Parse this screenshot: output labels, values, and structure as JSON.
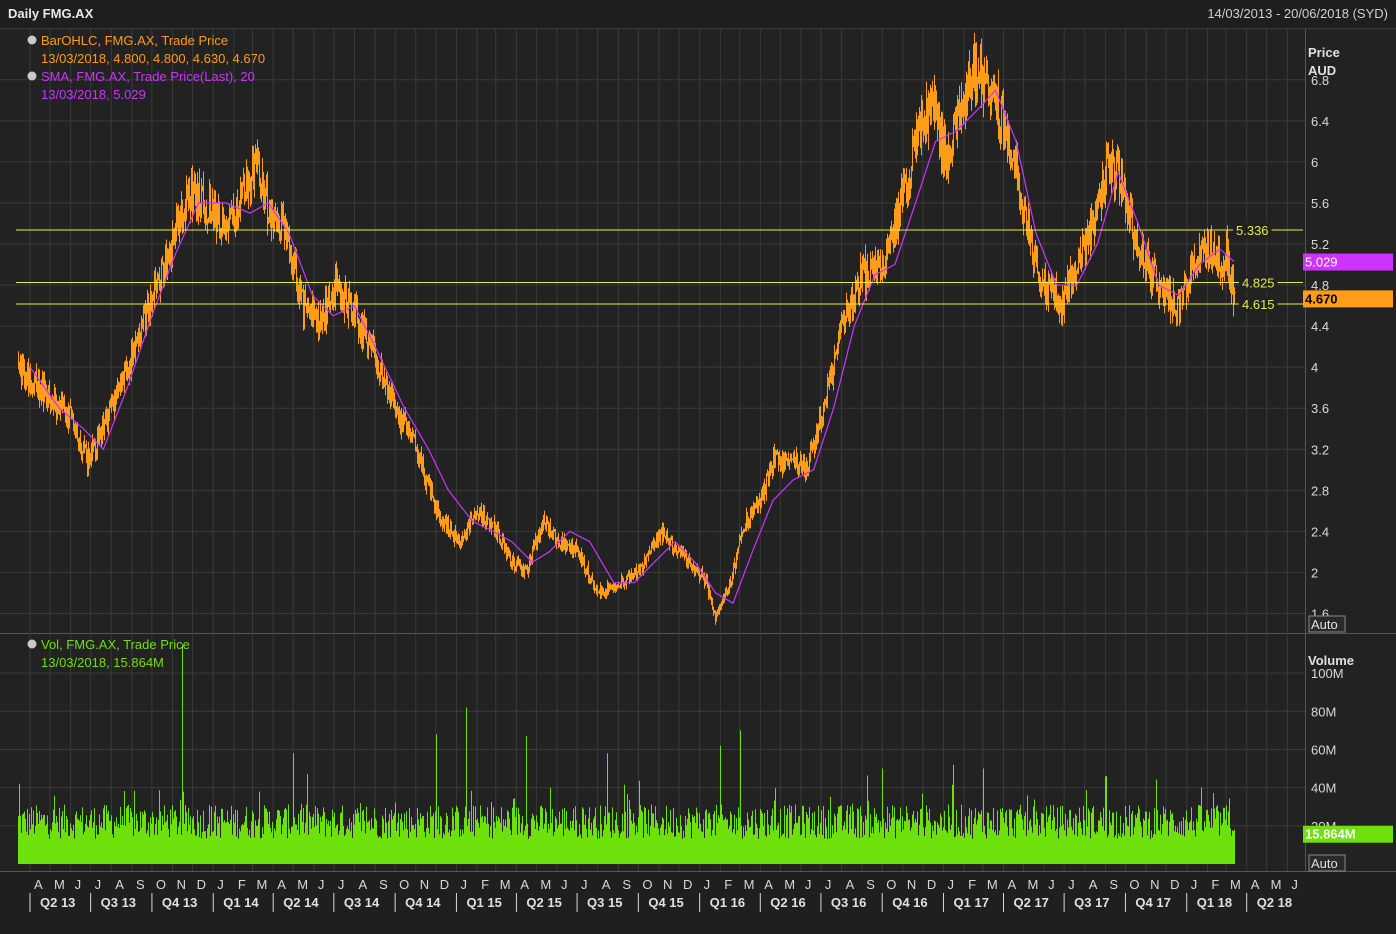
{
  "window": {
    "title": "Daily FMG.AX",
    "date_range": "14/03/2013 - 20/06/2018 (SYD)"
  },
  "legend": {
    "ohlc_line1": "BarOHLC, FMG.AX, Trade Price",
    "ohlc_line2": "13/03/2018, 4.800, 4.800, 4.630, 4.670",
    "sma_line1": "SMA, FMG.AX, Trade Price(Last),  20",
    "sma_line2": "13/03/2018, 5.029",
    "vol_line1": "Vol, FMG.AX, Trade Price",
    "vol_line2": "13/03/2018, 15.864M"
  },
  "price_axis": {
    "title": "Price",
    "unit": "AUD",
    "auto_label": "Auto"
  },
  "volume_axis": {
    "title": "Volume",
    "auto_label": "Auto"
  },
  "colors": {
    "background": "#222222",
    "price": "#ff9c1a",
    "sma": "#cc33ff",
    "volume": "#6ee00b",
    "hline": "#e8e84a",
    "grid": "#3a3a3a"
  },
  "chart_data": [
    {
      "type": "line",
      "title": "Daily FMG.AX",
      "ylabel": "Price AUD",
      "ylim": [
        1.4,
        7.1
      ],
      "y_ticks": [
        1.6,
        2,
        2.4,
        2.8,
        3.2,
        3.6,
        4,
        4.4,
        4.8,
        5.2,
        5.6,
        6,
        6.4,
        6.8
      ],
      "y_tick_labels": [
        "1.6",
        "2",
        "2.4",
        "2.8",
        "3.2",
        "3.6",
        "4",
        "4.4",
        "4.8",
        "5.2",
        "5.6",
        "6",
        "6.4",
        "6.8"
      ],
      "grid": true,
      "x_dates": [
        "2013-03-14",
        "2013-05-01",
        "2013-06-01",
        "2013-06-25",
        "2013-08-01",
        "2013-09-15",
        "2013-10-20",
        "2013-11-25",
        "2013-12-20",
        "2014-01-20",
        "2014-02-15",
        "2014-03-05",
        "2014-03-31",
        "2014-04-20",
        "2014-05-15",
        "2014-06-10",
        "2014-07-01",
        "2014-07-25",
        "2014-08-25",
        "2014-10-01",
        "2014-11-01",
        "2014-12-01",
        "2015-01-05",
        "2015-02-01",
        "2015-03-01",
        "2015-03-25",
        "2015-04-15",
        "2015-05-10",
        "2015-06-01",
        "2015-07-01",
        "2015-08-01",
        "2015-09-01",
        "2015-10-01",
        "2015-11-01",
        "2015-12-01",
        "2016-01-10",
        "2016-01-25",
        "2016-02-15",
        "2016-03-10",
        "2016-04-01",
        "2016-04-20",
        "2016-05-15",
        "2016-06-10",
        "2016-07-05",
        "2016-08-01",
        "2016-09-01",
        "2016-10-01",
        "2016-10-25",
        "2016-11-20",
        "2016-12-15",
        "2017-01-05",
        "2017-01-25",
        "2017-02-15",
        "2017-03-01",
        "2017-03-25",
        "2017-04-15",
        "2017-05-10",
        "2017-06-01",
        "2017-06-25",
        "2017-07-20",
        "2017-08-15",
        "2017-09-05",
        "2017-09-20",
        "2017-10-15",
        "2017-11-10",
        "2017-12-05",
        "2017-12-20",
        "2018-01-15",
        "2018-02-01",
        "2018-02-20",
        "2018-03-01",
        "2018-03-13"
      ],
      "close": [
        4.0,
        3.7,
        3.5,
        3.1,
        3.6,
        4.4,
        5.0,
        5.7,
        5.6,
        5.3,
        5.7,
        6.0,
        5.4,
        5.3,
        4.6,
        4.4,
        4.8,
        4.6,
        4.2,
        3.6,
        3.2,
        2.6,
        2.3,
        2.6,
        2.4,
        2.1,
        2.0,
        2.5,
        2.3,
        2.2,
        1.8,
        1.9,
        2.0,
        2.4,
        2.2,
        1.9,
        1.55,
        1.9,
        2.5,
        2.7,
        3.1,
        3.1,
        3.0,
        3.6,
        4.4,
        4.9,
        5.0,
        5.5,
        6.2,
        6.6,
        6.0,
        6.5,
        6.9,
        6.8,
        6.5,
        6.0,
        5.3,
        4.8,
        4.6,
        5.0,
        5.4,
        6.0,
        5.9,
        5.2,
        4.9,
        4.7,
        4.6,
        5.0,
        5.2,
        5.0,
        5.1,
        4.67
      ],
      "sma_x_dates": [
        "2013-04-01",
        "2013-05-15",
        "2013-06-20",
        "2013-07-20",
        "2013-08-25",
        "2013-10-01",
        "2013-11-05",
        "2013-12-10",
        "2014-01-20",
        "2014-02-25",
        "2014-03-25",
        "2014-04-25",
        "2014-05-30",
        "2014-06-30",
        "2014-08-01",
        "2014-09-01",
        "2014-10-15",
        "2014-11-20",
        "2014-12-20",
        "2015-01-25",
        "2015-02-25",
        "2015-03-25",
        "2015-04-25",
        "2015-05-20",
        "2015-06-20",
        "2015-07-20",
        "2015-08-25",
        "2015-09-25",
        "2015-10-25",
        "2015-11-25",
        "2015-12-25",
        "2016-01-25",
        "2016-02-20",
        "2016-03-20",
        "2016-04-20",
        "2016-05-20",
        "2016-06-20",
        "2016-07-20",
        "2016-08-20",
        "2016-09-20",
        "2016-10-20",
        "2016-11-20",
        "2016-12-20",
        "2017-01-20",
        "2017-02-20",
        "2017-03-20",
        "2017-04-20",
        "2017-05-20",
        "2017-06-20",
        "2017-07-20",
        "2017-08-20",
        "2017-09-20",
        "2017-10-20",
        "2017-11-20",
        "2017-12-20",
        "2018-01-20",
        "2018-02-20",
        "2018-03-13"
      ],
      "sma": [
        4.0,
        3.6,
        3.4,
        3.2,
        3.8,
        4.5,
        5.1,
        5.6,
        5.6,
        5.5,
        5.6,
        5.3,
        4.7,
        4.5,
        4.6,
        4.2,
        3.6,
        3.2,
        2.8,
        2.5,
        2.4,
        2.3,
        2.1,
        2.2,
        2.4,
        2.3,
        1.9,
        1.9,
        2.1,
        2.3,
        2.1,
        1.8,
        1.7,
        2.2,
        2.7,
        2.9,
        3.0,
        3.6,
        4.4,
        4.9,
        5.0,
        5.6,
        6.2,
        6.3,
        6.5,
        6.7,
        6.2,
        5.3,
        4.8,
        4.8,
        5.2,
        5.9,
        5.4,
        4.8,
        4.7,
        5.0,
        5.15,
        5.029
      ],
      "last": 4.67,
      "sma_last": 5.029,
      "ohlc_last": {
        "date": "13/03/2018",
        "open": 4.8,
        "high": 4.8,
        "low": 4.63,
        "close": 4.67
      },
      "hlines": [
        5.336,
        4.825,
        4.615
      ],
      "hline_labels": [
        "5.336",
        "4.825",
        "4.615"
      ],
      "last_label": "4.670",
      "sma_label": "5.029",
      "legend": [
        "BarOHLC, FMG.AX, Trade Price",
        "SMA, FMG.AX, Trade Price(Last),  20"
      ]
    },
    {
      "type": "bar",
      "title": "Vol, FMG.AX, Trade Price",
      "ylabel": "Volume",
      "ylim": [
        0,
        110
      ],
      "y_ticks": [
        20,
        40,
        60,
        80,
        100
      ],
      "y_tick_labels": [
        "20M",
        "40M",
        "60M",
        "80M",
        "100M"
      ],
      "base": 24,
      "spikes": [
        {
          "date": "2013-03-15",
          "value": 42
        },
        {
          "date": "2013-11-15",
          "value": 115
        },
        {
          "date": "2014-05-01",
          "value": 58
        },
        {
          "date": "2014-12-01",
          "value": 68
        },
        {
          "date": "2015-01-15",
          "value": 82
        },
        {
          "date": "2015-04-15",
          "value": 67
        },
        {
          "date": "2015-08-15",
          "value": 58
        },
        {
          "date": "2016-03-01",
          "value": 70
        },
        {
          "date": "2016-02-01",
          "value": 62
        },
        {
          "date": "2016-10-01",
          "value": 50
        },
        {
          "date": "2017-01-15",
          "value": 52
        },
        {
          "date": "2017-09-01",
          "value": 46
        },
        {
          "date": "2017-03-01",
          "value": 50
        }
      ],
      "last": 15.864,
      "last_label": "15.864M",
      "legend": [
        "Vol, FMG.AX, Trade Price"
      ]
    }
  ],
  "time_axis": {
    "start": "2013-03-14",
    "end": "2018-06-20",
    "month_letters": [
      "J",
      "F",
      "M",
      "A",
      "M",
      "J",
      "J",
      "A",
      "S",
      "O",
      "N",
      "D"
    ],
    "quarters": [
      "Q2 13",
      "Q3 13",
      "Q4 13",
      "Q1 14",
      "Q2 14",
      "Q3 14",
      "Q4 14",
      "Q1 15",
      "Q2 15",
      "Q3 15",
      "Q4 15",
      "Q1 16",
      "Q2 16",
      "Q3 16",
      "Q4 16",
      "Q1 17",
      "Q2 17",
      "Q3 17",
      "Q4 17",
      "Q1 18",
      "Q2 18"
    ]
  }
}
